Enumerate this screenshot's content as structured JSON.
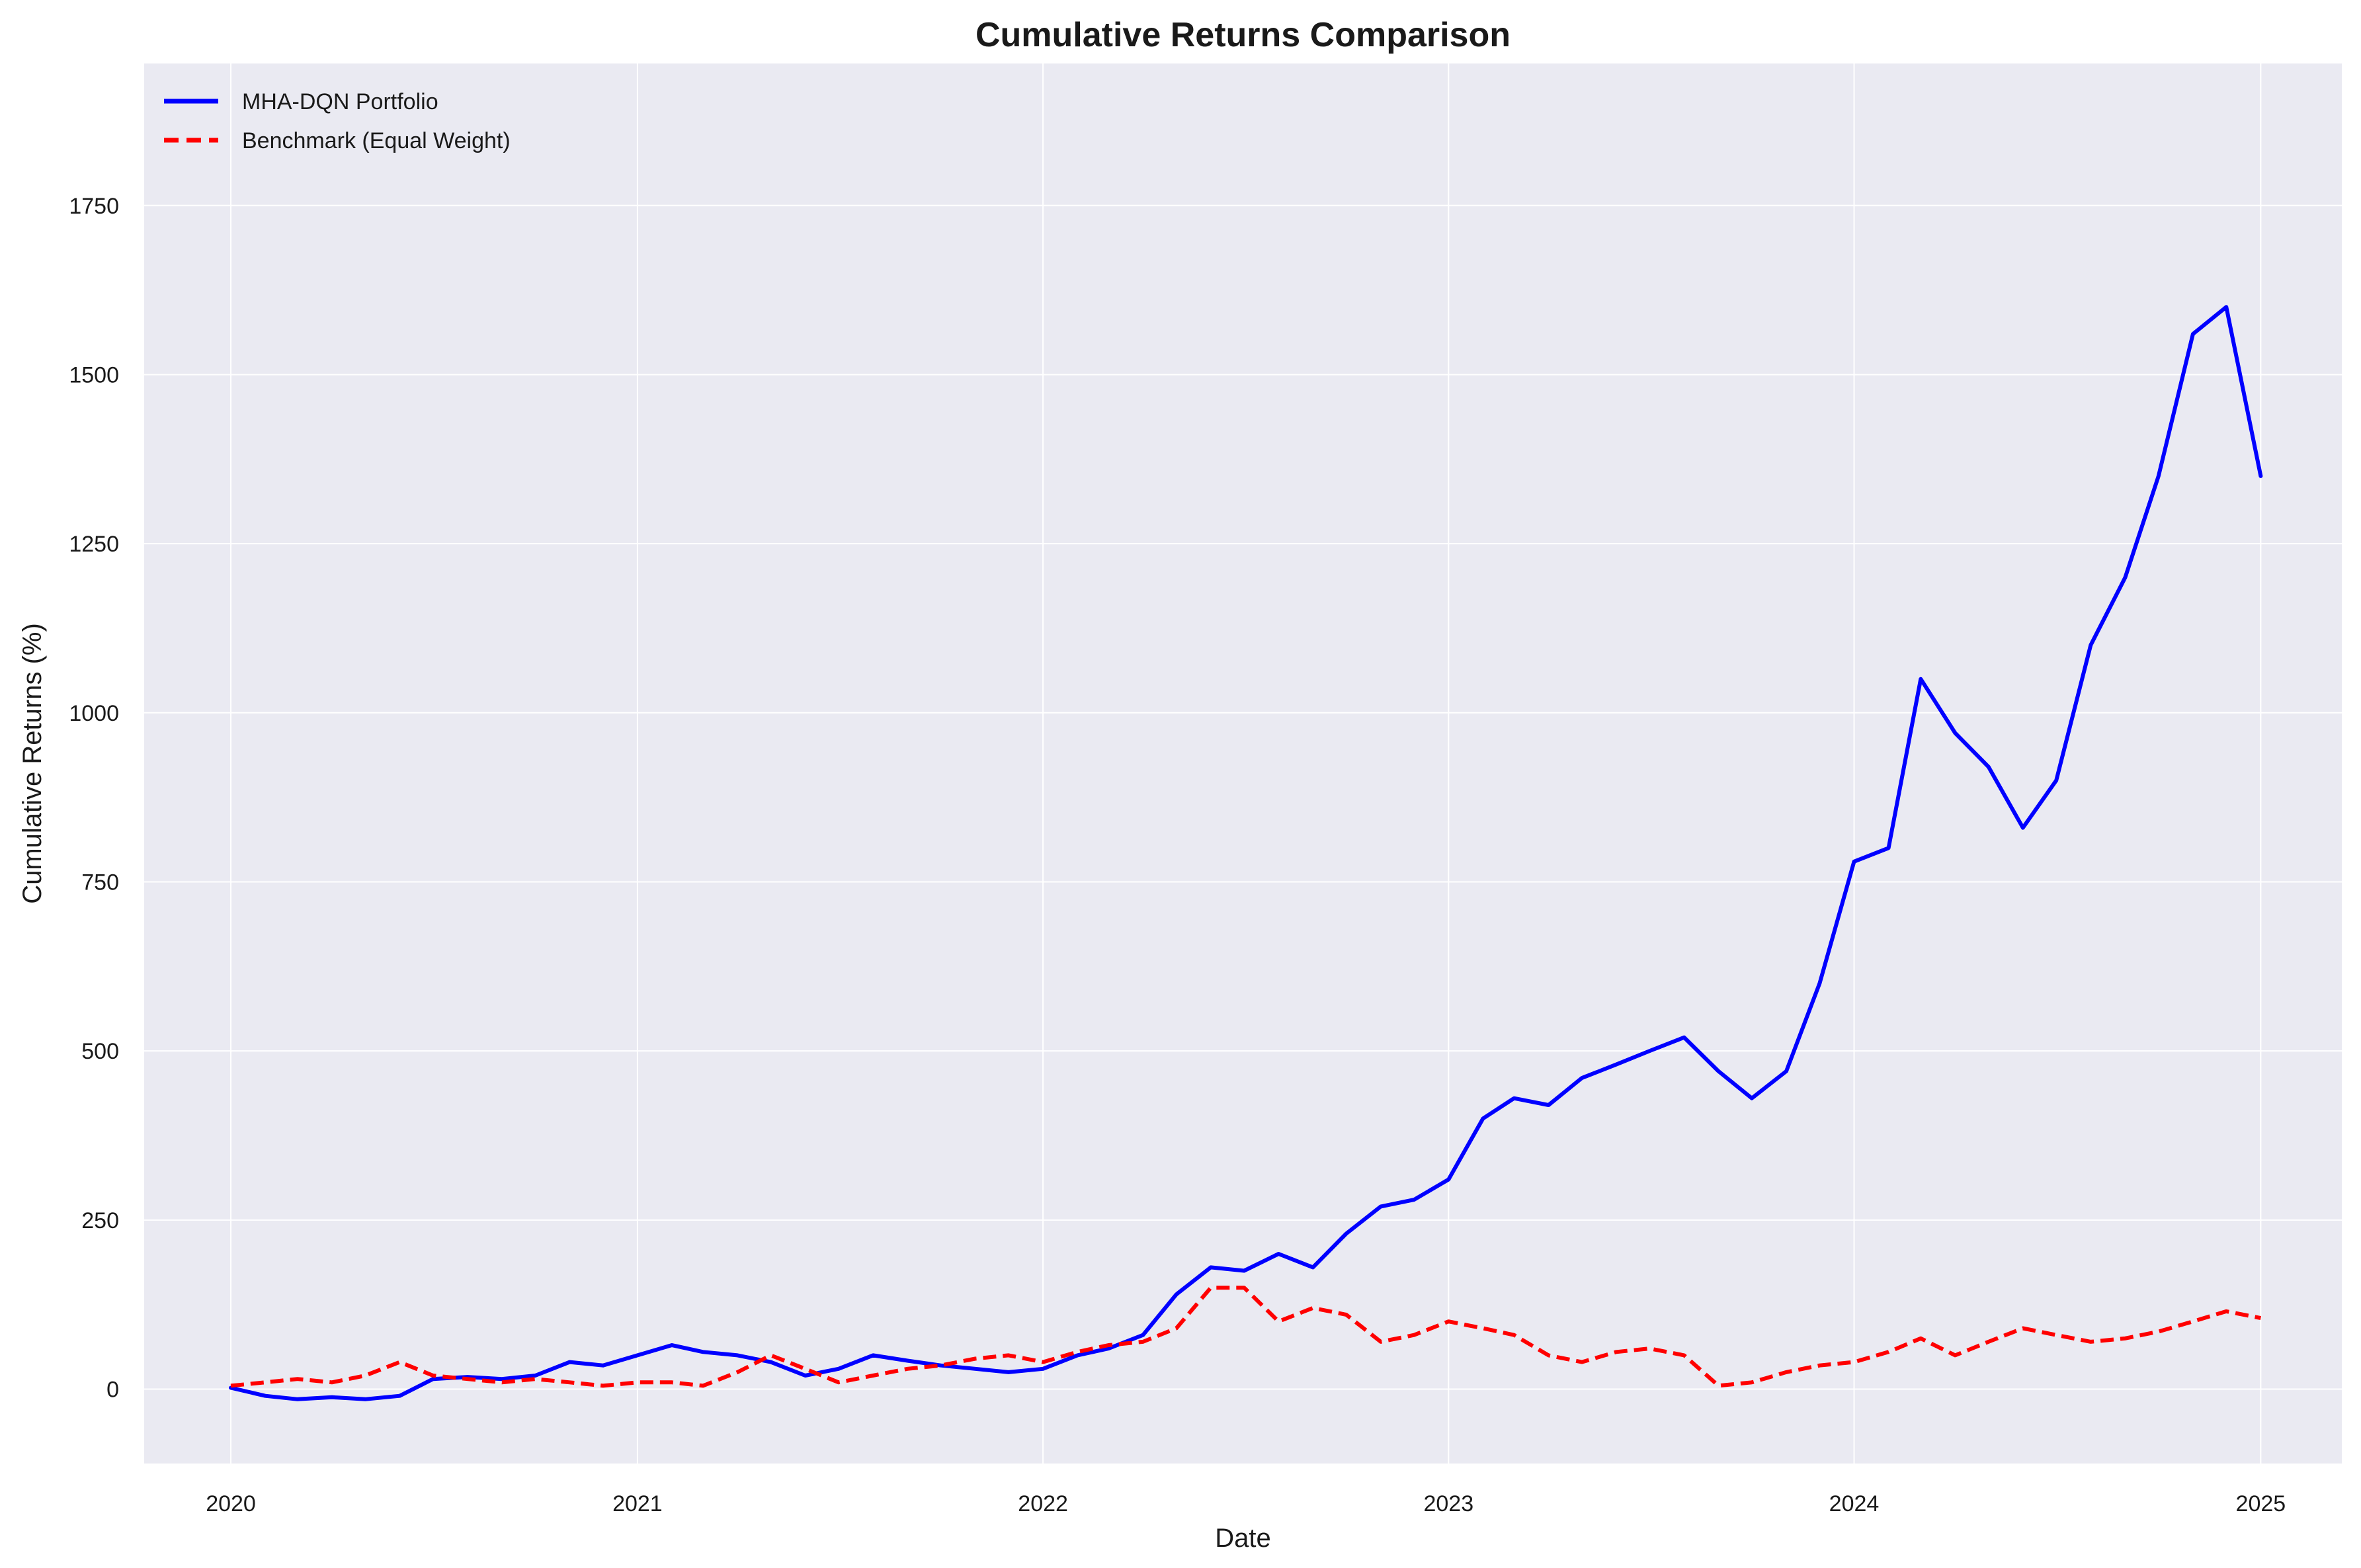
{
  "chart_data": {
    "type": "line",
    "title": "Cumulative Returns Comparison",
    "xlabel": "Date",
    "ylabel": "Cumulative Returns (%)",
    "x_ticks": [
      "2020",
      "2021",
      "2022",
      "2023",
      "2024",
      "2025"
    ],
    "y_ticks": [
      0,
      250,
      500,
      750,
      1000,
      1250,
      1500,
      1750
    ],
    "xlim": [
      "2019-10-15",
      "2025-03-15"
    ],
    "ylim": [
      -110,
      1960
    ],
    "grid": true,
    "legend_position": "top-left",
    "background_color": "#eaeaf2",
    "series": [
      {
        "name": "MHA-DQN Portfolio",
        "color": "#0000ff",
        "style": "solid",
        "x": [
          "2020-01-01",
          "2020-02-01",
          "2020-03-01",
          "2020-04-01",
          "2020-05-01",
          "2020-06-01",
          "2020-07-01",
          "2020-08-01",
          "2020-09-01",
          "2020-10-01",
          "2020-11-01",
          "2020-12-01",
          "2021-01-01",
          "2021-02-01",
          "2021-03-01",
          "2021-04-01",
          "2021-05-01",
          "2021-06-01",
          "2021-07-01",
          "2021-08-01",
          "2021-09-01",
          "2021-10-01",
          "2021-11-01",
          "2021-12-01",
          "2022-01-01",
          "2022-02-01",
          "2022-03-01",
          "2022-04-01",
          "2022-05-01",
          "2022-06-01",
          "2022-07-01",
          "2022-08-01",
          "2022-09-01",
          "2022-10-01",
          "2022-11-01",
          "2022-12-01",
          "2023-01-01",
          "2023-02-01",
          "2023-03-01",
          "2023-04-01",
          "2023-05-01",
          "2023-06-01",
          "2023-07-01",
          "2023-08-01",
          "2023-09-01",
          "2023-10-01",
          "2023-11-01",
          "2023-12-01",
          "2024-01-01",
          "2024-02-01",
          "2024-03-01",
          "2024-04-01",
          "2024-05-01",
          "2024-06-01",
          "2024-07-01",
          "2024-08-01",
          "2024-09-01",
          "2024-10-01",
          "2024-11-01",
          "2024-12-01",
          "2025-01-01"
        ],
        "values": [
          2,
          -10,
          -15,
          -12,
          -15,
          -10,
          15,
          18,
          15,
          20,
          40,
          35,
          50,
          65,
          55,
          50,
          40,
          20,
          30,
          50,
          42,
          35,
          30,
          25,
          30,
          50,
          60,
          80,
          140,
          180,
          175,
          200,
          180,
          230,
          270,
          280,
          310,
          400,
          430,
          420,
          460,
          480,
          500,
          520,
          470,
          430,
          470,
          600,
          780,
          800,
          1050,
          970,
          920,
          830,
          900,
          1100,
          1200,
          1350,
          1560,
          1600,
          1350
        ],
        "note_values_are_approximate": true
      },
      {
        "name": "Benchmark (Equal Weight)",
        "color": "#ff0000",
        "style": "dashed",
        "x": [
          "2020-01-01",
          "2020-02-01",
          "2020-03-01",
          "2020-04-01",
          "2020-05-01",
          "2020-06-01",
          "2020-07-01",
          "2020-08-01",
          "2020-09-01",
          "2020-10-01",
          "2020-11-01",
          "2020-12-01",
          "2021-01-01",
          "2021-02-01",
          "2021-03-01",
          "2021-04-01",
          "2021-05-01",
          "2021-06-01",
          "2021-07-01",
          "2021-08-01",
          "2021-09-01",
          "2021-10-01",
          "2021-11-01",
          "2021-12-01",
          "2022-01-01",
          "2022-02-01",
          "2022-03-01",
          "2022-04-01",
          "2022-05-01",
          "2022-06-01",
          "2022-07-01",
          "2022-08-01",
          "2022-09-01",
          "2022-10-01",
          "2022-11-01",
          "2022-12-01",
          "2023-01-01",
          "2023-02-01",
          "2023-03-01",
          "2023-04-01",
          "2023-05-01",
          "2023-06-01",
          "2023-07-01",
          "2023-08-01",
          "2023-09-01",
          "2023-10-01",
          "2023-11-01",
          "2023-12-01",
          "2024-01-01",
          "2024-02-01",
          "2024-03-01",
          "2024-04-01",
          "2024-05-01",
          "2024-06-01",
          "2024-07-01",
          "2024-08-01",
          "2024-09-01",
          "2024-10-01",
          "2024-11-01",
          "2024-12-01",
          "2025-01-01"
        ],
        "values": [
          5,
          10,
          15,
          10,
          20,
          40,
          20,
          15,
          10,
          15,
          10,
          5,
          10,
          10,
          5,
          25,
          50,
          30,
          10,
          20,
          30,
          35,
          45,
          50,
          40,
          55,
          65,
          70,
          90,
          150,
          150,
          100,
          120,
          110,
          70,
          80,
          100,
          90,
          80,
          50,
          40,
          55,
          60,
          50,
          5,
          10,
          25,
          35,
          40,
          55,
          75,
          50,
          70,
          90,
          80,
          70,
          75,
          85,
          100,
          115,
          105
        ],
        "note_values_are_approximate": true
      }
    ]
  }
}
